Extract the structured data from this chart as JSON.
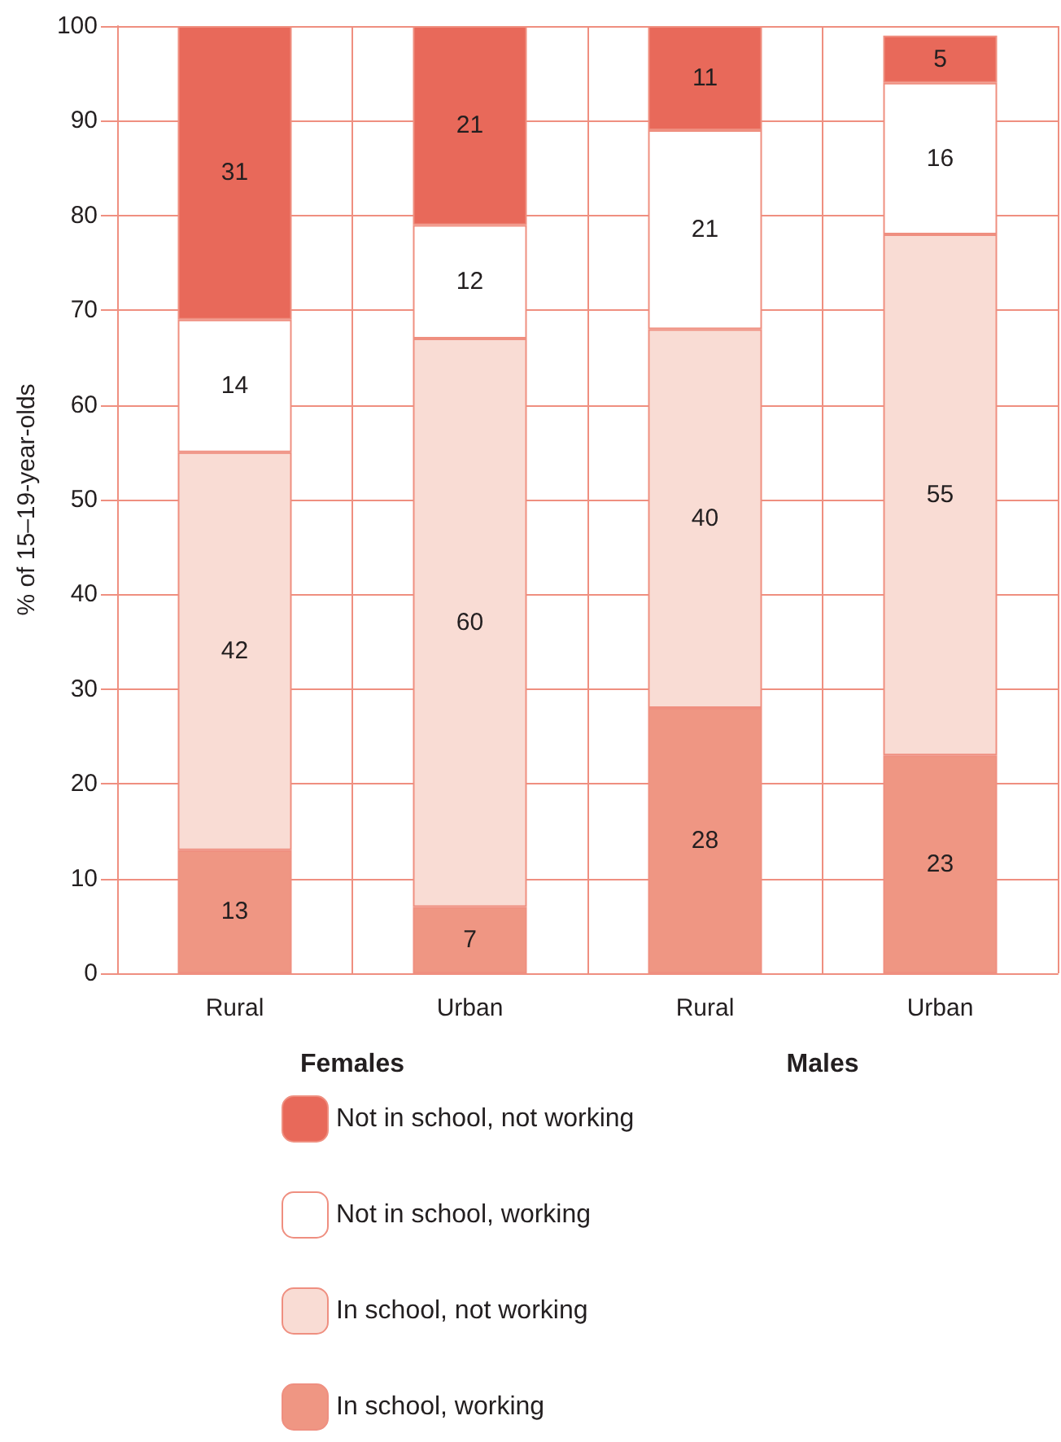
{
  "chart_data": {
    "type": "bar",
    "stacked": true,
    "ylabel": "% of 15–19-year-olds",
    "categories": [
      "Rural",
      "Urban",
      "Rural",
      "Urban"
    ],
    "series": [
      {
        "name": "In school, working",
        "color": "#ef9683",
        "values": [
          13,
          7,
          28,
          23
        ]
      },
      {
        "name": "In school, not working",
        "color": "#f9dcd4",
        "values": [
          42,
          60,
          40,
          55
        ]
      },
      {
        "name": "Not in school, working",
        "color": "#ffffff",
        "values": [
          14,
          12,
          21,
          16
        ]
      },
      {
        "name": "Not in school, not working",
        "color": "#e8695a",
        "values": [
          31,
          21,
          11,
          5
        ]
      }
    ],
    "ylim": [
      0,
      100
    ],
    "yticks": [
      0,
      10,
      20,
      30,
      40,
      50,
      60,
      70,
      80,
      90,
      100
    ],
    "grid": true,
    "legend": "bottom",
    "data_labels": true,
    "annotations": [
      "Females",
      "Males"
    ]
  }
}
